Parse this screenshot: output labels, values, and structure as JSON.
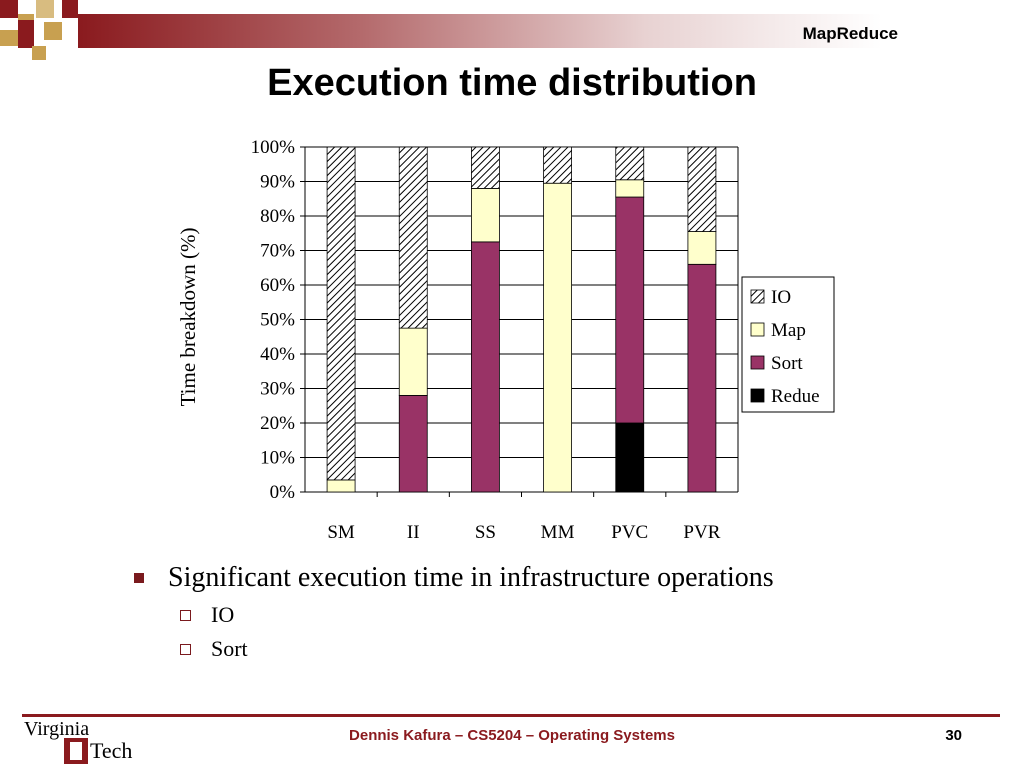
{
  "header": {
    "label": "MapReduce",
    "title": "Execution time distribution"
  },
  "chart_data": {
    "type": "bar",
    "stacked": true,
    "ylabel": "Time breakdown (%)",
    "xlabel": "",
    "ylim": [
      0,
      100
    ],
    "yticks": [
      "0%",
      "10%",
      "20%",
      "30%",
      "40%",
      "50%",
      "60%",
      "70%",
      "80%",
      "90%",
      "100%"
    ],
    "categories": [
      "SM",
      "II",
      "SS",
      "MM",
      "PVC",
      "PVR"
    ],
    "series": [
      {
        "name": "Redue",
        "color": "#000000",
        "pattern": "solid",
        "values": [
          0,
          0,
          0,
          0,
          20,
          0
        ]
      },
      {
        "name": "Sort",
        "color": "#993366",
        "pattern": "solid",
        "values": [
          0,
          28,
          72.5,
          0,
          65.5,
          66
        ]
      },
      {
        "name": "Map",
        "color": "#ffffcc",
        "pattern": "solid",
        "values": [
          3.5,
          19.5,
          15.5,
          89.5,
          5,
          9.5
        ]
      },
      {
        "name": "IO",
        "color": "#000000",
        "pattern": "hatch",
        "values": [
          96.5,
          52.5,
          12,
          10.5,
          9.5,
          24.5
        ]
      }
    ],
    "legend": [
      "IO",
      "Map",
      "Sort",
      "Redue"
    ],
    "legend_position": "right"
  },
  "bullets": {
    "main": "Significant execution time in infrastructure operations",
    "subs": [
      "IO",
      "Sort"
    ]
  },
  "footer": {
    "text": "Dennis Kafura – CS5204 – Operating Systems",
    "page": "30"
  },
  "logo": {
    "line1": "Virginia",
    "line2": "Tech"
  },
  "colors": {
    "brand": "#8a1a1e",
    "deco_gold": "#c8a050"
  }
}
